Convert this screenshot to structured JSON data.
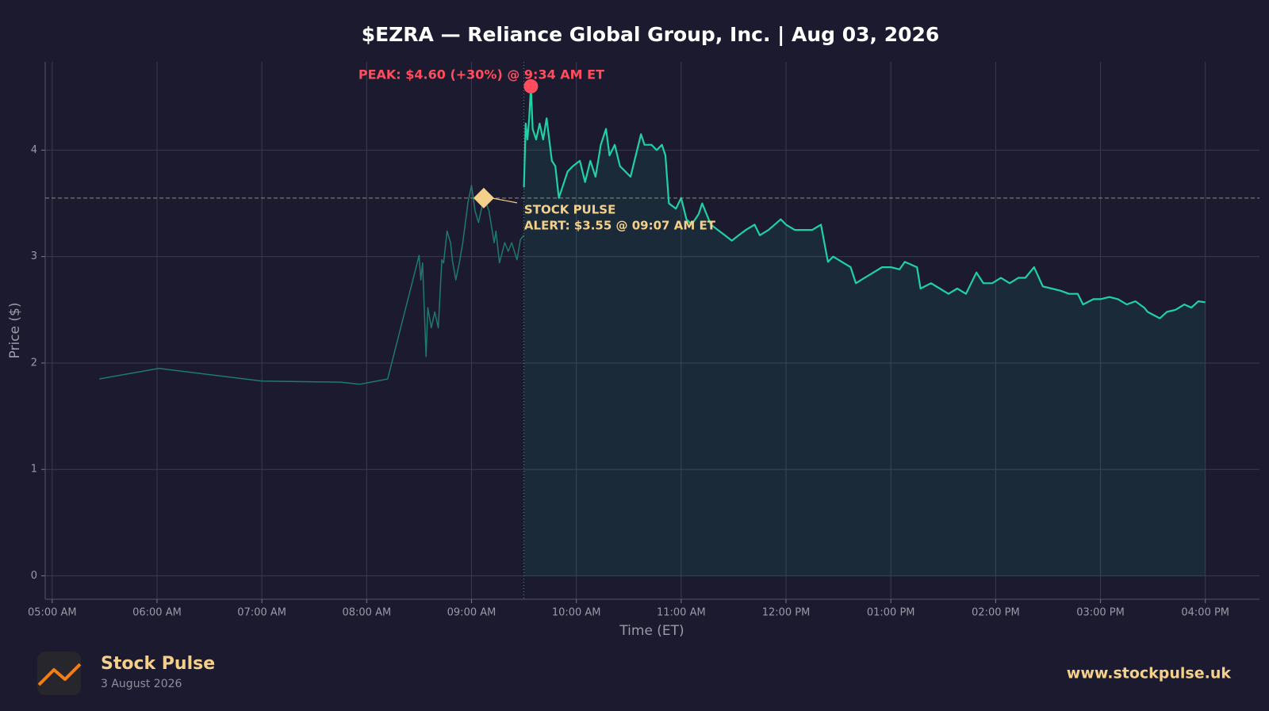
{
  "chart_data": {
    "type": "line",
    "title": "$EZRA — Reliance Global Group, Inc.  |  Aug 03, 2026",
    "x_label": "Time (ET)",
    "y_label": "Price ($)",
    "xlim": [
      "04:56",
      "16:31"
    ],
    "xticks": [
      {
        "value": "05:00",
        "label": "05:00 AM"
      },
      {
        "value": "06:00",
        "label": "06:00 AM"
      },
      {
        "value": "07:00",
        "label": "07:00 AM"
      },
      {
        "value": "08:00",
        "label": "08:00 AM"
      },
      {
        "value": "09:00",
        "label": "09:00 AM"
      },
      {
        "value": "10:00",
        "label": "10:00 AM"
      },
      {
        "value": "11:00",
        "label": "11:00 AM"
      },
      {
        "value": "12:00",
        "label": "12:00 PM"
      },
      {
        "value": "13:00",
        "label": "01:00 PM"
      },
      {
        "value": "14:00",
        "label": "02:00 PM"
      },
      {
        "value": "15:00",
        "label": "03:00 PM"
      },
      {
        "value": "16:00",
        "label": "04:00 PM"
      }
    ],
    "ylim": [
      -0.22,
      4.83
    ],
    "yticks": [
      0,
      1,
      2,
      3,
      4
    ],
    "grid": true,
    "series": [
      {
        "color": "#1f7a6b",
        "x": [
          "05:27",
          "06:01",
          "07:00",
          "07:45",
          "07:56",
          "08:12",
          "08:30",
          "08:31",
          "08:32",
          "08:34",
          "08:35",
          "08:37",
          "08:39",
          "08:41",
          "08:43",
          "08:44",
          "08:46",
          "08:48",
          "08:49",
          "08:51",
          "08:53",
          "08:55",
          "08:58",
          "09:00",
          "09:02",
          "09:04",
          "09:06",
          "09:08",
          "09:10",
          "09:13",
          "09:14",
          "09:16",
          "09:19",
          "09:21",
          "09:23",
          "09:26",
          "09:28",
          "09:30"
        ],
        "values": [
          1.85,
          1.95,
          1.83,
          1.82,
          1.8,
          1.85,
          3.01,
          2.78,
          2.94,
          2.06,
          2.52,
          2.33,
          2.48,
          2.33,
          2.97,
          2.94,
          3.24,
          3.13,
          2.97,
          2.78,
          2.94,
          3.13,
          3.51,
          3.67,
          3.43,
          3.32,
          3.47,
          3.52,
          3.43,
          3.13,
          3.24,
          2.94,
          3.13,
          3.05,
          3.13,
          2.97,
          3.16,
          3.2
        ]
      },
      {
        "color": "#1fd1a5",
        "x": [
          "09:30",
          "09:31",
          "09:32",
          "09:33",
          "09:34",
          "09:35",
          "09:37",
          "09:39",
          "09:41",
          "09:43",
          "09:46",
          "09:48",
          "09:50",
          "09:55",
          "09:58",
          "10:02",
          "10:05",
          "10:08",
          "10:11",
          "10:14",
          "10:17",
          "10:19",
          "10:22",
          "10:25",
          "10:28",
          "10:31",
          "10:37",
          "10:39",
          "10:43",
          "10:46",
          "10:49",
          "10:51",
          "10:53",
          "10:57",
          "11:00",
          "11:03",
          "11:06",
          "11:10",
          "11:12",
          "11:17",
          "11:21",
          "11:25",
          "11:29",
          "11:33",
          "11:37",
          "11:42",
          "11:45",
          "11:50",
          "11:57",
          "12:00",
          "12:05",
          "12:10",
          "12:15",
          "12:20",
          "12:24",
          "12:27",
          "12:32",
          "12:37",
          "12:40",
          "12:45",
          "12:50",
          "12:55",
          "13:00",
          "13:05",
          "13:08",
          "13:15",
          "13:17",
          "13:23",
          "13:28",
          "13:33",
          "13:38",
          "13:43",
          "13:49",
          "13:53",
          "13:58",
          "14:03",
          "14:08",
          "14:13",
          "14:17",
          "14:22",
          "14:27",
          "14:32",
          "14:37",
          "14:42",
          "14:47",
          "14:50",
          "14:56",
          "15:00",
          "15:05",
          "15:10",
          "15:15",
          "15:20",
          "15:25",
          "15:27",
          "15:34",
          "15:38",
          "15:43",
          "15:48",
          "15:52",
          "15:56",
          "16:00"
        ],
        "values": [
          3.65,
          4.25,
          4.1,
          4.3,
          4.6,
          4.2,
          4.1,
          4.25,
          4.1,
          4.3,
          3.9,
          3.85,
          3.55,
          3.8,
          3.85,
          3.9,
          3.7,
          3.9,
          3.75,
          4.05,
          4.2,
          3.95,
          4.05,
          3.85,
          3.8,
          3.75,
          4.15,
          4.05,
          4.05,
          4.0,
          4.05,
          3.95,
          3.5,
          3.45,
          3.55,
          3.35,
          3.3,
          3.4,
          3.5,
          3.3,
          3.25,
          3.2,
          3.15,
          3.2,
          3.25,
          3.3,
          3.2,
          3.25,
          3.35,
          3.3,
          3.25,
          3.25,
          3.25,
          3.3,
          2.95,
          3.0,
          2.95,
          2.9,
          2.75,
          2.8,
          2.85,
          2.9,
          2.9,
          2.88,
          2.95,
          2.9,
          2.7,
          2.75,
          2.7,
          2.65,
          2.7,
          2.65,
          2.85,
          2.75,
          2.75,
          2.8,
          2.75,
          2.8,
          2.8,
          2.9,
          2.72,
          2.7,
          2.68,
          2.65,
          2.65,
          2.55,
          2.6,
          2.6,
          2.62,
          2.6,
          2.55,
          2.58,
          2.52,
          2.48,
          2.42,
          2.48,
          2.5,
          2.55,
          2.52,
          2.58,
          2.57
        ]
      }
    ],
    "session_open": "09:30",
    "peak": {
      "x": "09:34",
      "value": 4.6,
      "color": "#ff4d5e",
      "label": "PEAK: $4.60 (+30%) @ 9:34 AM ET"
    },
    "alert": {
      "x": "09:07",
      "value": 3.55,
      "color": "#f5d08a",
      "label_lines": [
        "STOCK PULSE",
        "ALERT: $3.55 @ 09:07 AM ET"
      ]
    },
    "footer": {
      "brand": "Stock Pulse",
      "date": "3 August 2026",
      "url": "www.stockpulse.uk"
    }
  }
}
